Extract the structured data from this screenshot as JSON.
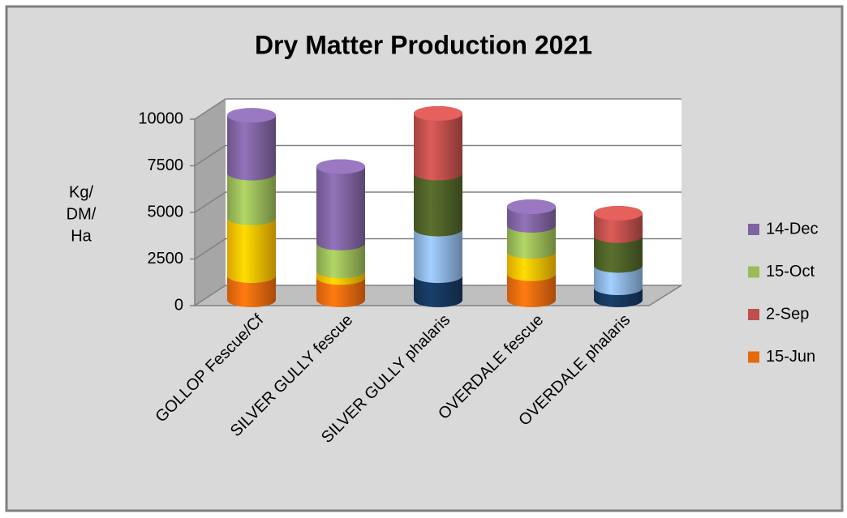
{
  "chart_data": {
    "type": "bar3d-stacked-cylinder",
    "title": "Dry Matter Production 2021",
    "ylabel": [
      "Kg/",
      "DM/",
      "Ha"
    ],
    "categories": [
      "GOLLOP Fescue/Cf",
      "SILVER GULLY fescue",
      "SILVER GULLY phalaris",
      "OVERDALE fescue",
      "OVERDALE phalaris"
    ],
    "series": [
      {
        "name": "15-Jun",
        "color": "#e46c0a",
        "values": [
          1300,
          1200,
          1300,
          1400,
          650
        ],
        "colors": [
          "#f26b0f",
          "#f26b0f",
          "#17375e",
          "#f26b0f",
          "#17375e"
        ]
      },
      {
        "name": "2-Sep",
        "color": "#c0504d",
        "values": [
          3100,
          350,
          2500,
          1200,
          1200
        ],
        "colors": [
          "#ffc000",
          "#ffc000",
          "#8db4e2",
          "#ffc000",
          "#8db4e2"
        ]
      },
      {
        "name": "15-Oct",
        "color": "#9bbb59",
        "values": [
          2400,
          1500,
          3000,
          1400,
          1600
        ],
        "colors": [
          "#9bbb59",
          "#9bbb59",
          "#4f6228",
          "#9bbb59",
          "#4f6228"
        ]
      },
      {
        "name": "14-Dec",
        "color": "#8064a2",
        "values": [
          3100,
          4100,
          3200,
          1000,
          1200
        ],
        "colors": [
          "#8064a2",
          "#8064a2",
          "#c0504d",
          "#8064a2",
          "#c0504d"
        ]
      }
    ],
    "ylim": [
      0,
      10000
    ],
    "yticks": [
      0,
      2500,
      5000,
      7500,
      10000
    ],
    "grid": true,
    "legend": "right"
  }
}
